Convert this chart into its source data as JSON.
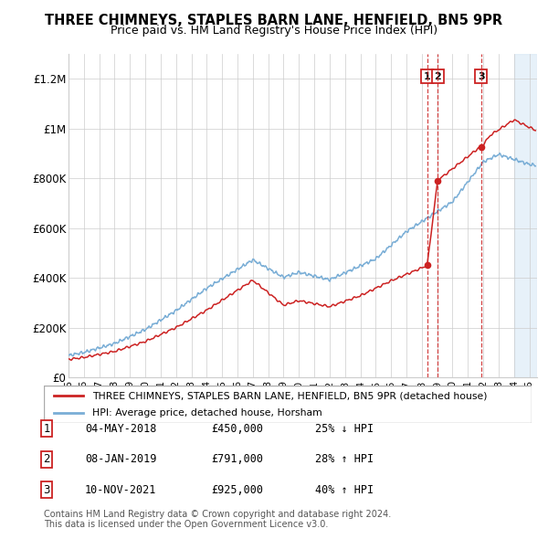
{
  "title": "THREE CHIMNEYS, STAPLES BARN LANE, HENFIELD, BN5 9PR",
  "subtitle": "Price paid vs. HM Land Registry's House Price Index (HPI)",
  "hpi_color": "#7aaed6",
  "price_color": "#cc2222",
  "ylim": [
    0,
    1300000
  ],
  "yticks": [
    0,
    200000,
    400000,
    600000,
    800000,
    1000000,
    1200000
  ],
  "ytick_labels": [
    "£0",
    "£200K",
    "£400K",
    "£600K",
    "£800K",
    "£1M",
    "£1.2M"
  ],
  "legend_label_red": "THREE CHIMNEYS, STAPLES BARN LANE, HENFIELD, BN5 9PR (detached house)",
  "legend_label_blue": "HPI: Average price, detached house, Horsham",
  "transactions": [
    {
      "num": 1,
      "date": "04-MAY-2018",
      "price": 450000,
      "pct": "25%",
      "dir": "↓",
      "x_year": 2018.35
    },
    {
      "num": 2,
      "date": "08-JAN-2019",
      "price": 791000,
      "pct": "28%",
      "dir": "↑",
      "x_year": 2019.03
    },
    {
      "num": 3,
      "date": "10-NOV-2021",
      "price": 925000,
      "pct": "40%",
      "dir": "↑",
      "x_year": 2021.86
    }
  ],
  "footnote1": "Contains HM Land Registry data © Crown copyright and database right 2024.",
  "footnote2": "This data is licensed under the Open Government Licence v3.0.",
  "xmin": 1995.0,
  "xmax": 2025.5,
  "shade_from": 2024.0
}
